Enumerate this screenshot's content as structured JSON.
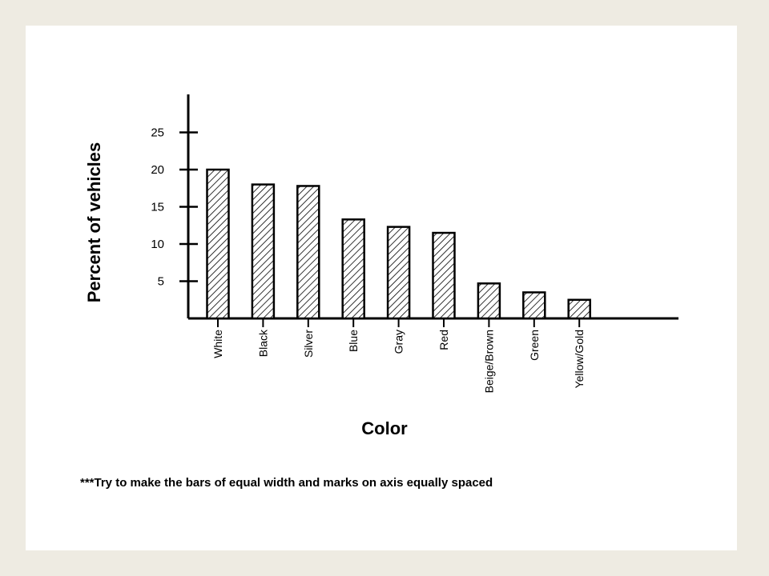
{
  "chart_data": {
    "type": "bar",
    "categories": [
      "White",
      "Black",
      "Silver",
      "Blue",
      "Gray",
      "Red",
      "Beige/Brown",
      "Green",
      "Yellow/Gold"
    ],
    "values": [
      20,
      18,
      17.8,
      13.3,
      12.3,
      11.5,
      4.7,
      3.5,
      2.5
    ],
    "xlabel": "Color",
    "ylabel": "Percent of vehicles",
    "ylim": [
      0,
      30
    ],
    "yticks": [
      5,
      10,
      15,
      20,
      25
    ],
    "grid": false,
    "bar_fill": "diagonal hatch",
    "bar_color": "#000000"
  },
  "note": "***Try to make the bars of equal width and marks on axis equally spaced"
}
